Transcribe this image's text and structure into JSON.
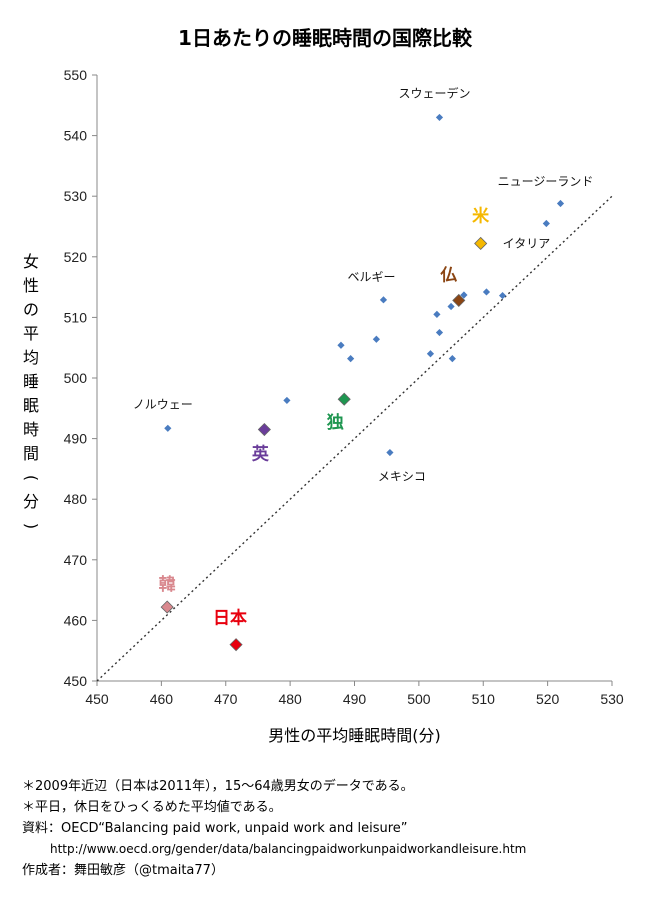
{
  "title": "1日あたりの睡眠時間の国際比較",
  "chart_data": {
    "type": "scatter",
    "xlabel": "男性の平均睡眠時間(分)",
    "ylabel": "女性の平均睡眠時間(分)",
    "xlim": [
      450,
      530
    ],
    "ylim": [
      450,
      550
    ],
    "xticks": [
      "450",
      "460",
      "470",
      "480",
      "490",
      "500",
      "510",
      "520",
      "530"
    ],
    "yticks": [
      "450",
      "460",
      "470",
      "480",
      "490",
      "500",
      "510",
      "520",
      "530",
      "540",
      "550"
    ],
    "grid": false,
    "reference_line": "y = x (dotted)",
    "points": [
      {
        "x": 503.2,
        "y": 543.0,
        "label": "スウェーデン"
      },
      {
        "x": 522.0,
        "y": 528.8,
        "label": "ニュージーランド"
      },
      {
        "x": 519.8,
        "y": 525.5,
        "label": ""
      },
      {
        "x": 513.0,
        "y": 513.6,
        "label": ""
      },
      {
        "x": 510.5,
        "y": 514.2,
        "label": ""
      },
      {
        "x": 507.0,
        "y": 513.7,
        "label": ""
      },
      {
        "x": 505.0,
        "y": 511.8,
        "label": ""
      },
      {
        "x": 502.8,
        "y": 510.5,
        "label": ""
      },
      {
        "x": 503.2,
        "y": 507.5,
        "label": ""
      },
      {
        "x": 494.5,
        "y": 512.9,
        "label": "ベルギー"
      },
      {
        "x": 493.4,
        "y": 506.4,
        "label": ""
      },
      {
        "x": 487.9,
        "y": 505.4,
        "label": ""
      },
      {
        "x": 489.4,
        "y": 503.2,
        "label": ""
      },
      {
        "x": 501.8,
        "y": 504.0,
        "label": ""
      },
      {
        "x": 505.2,
        "y": 503.2,
        "label": ""
      },
      {
        "x": 479.5,
        "y": 496.3,
        "label": ""
      },
      {
        "x": 461.0,
        "y": 491.7,
        "label": "ノルウェー"
      },
      {
        "x": 495.5,
        "y": 487.7,
        "label": "メキシコ"
      }
    ],
    "highlighted": [
      {
        "x": 509.6,
        "y": 522.2,
        "label": "米",
        "note": "イタリア",
        "color": "#f5b800"
      },
      {
        "x": 506.2,
        "y": 512.8,
        "label": "仏",
        "color": "#8b4513"
      },
      {
        "x": 488.4,
        "y": 496.5,
        "label": "独",
        "color": "#1e9650"
      },
      {
        "x": 476.0,
        "y": 491.5,
        "label": "英",
        "color": "#6a3d9a"
      },
      {
        "x": 460.9,
        "y": 462.2,
        "label": "韓",
        "color": "#d9888e"
      },
      {
        "x": 471.6,
        "y": 456.0,
        "label": "日本",
        "color": "#e8000e"
      }
    ],
    "marker_color": "#4a7cc0"
  },
  "notes": {
    "line1": "＊2009年近辺（日本は2011年），15〜64歳男女のデータである。",
    "line2": "＊平日，休日をひっくるめた平均値である。",
    "line3": "資料：OECD“Balancing paid work, unpaid work and leisure”",
    "url": "http://www.oecd.org/gender/data/balancingpaidworkunpaidworkandleisure.htm",
    "author": "作成者：舞田敏彦（@tmaita77）"
  }
}
